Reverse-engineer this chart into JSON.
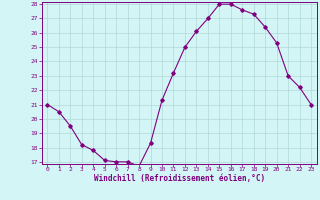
{
  "x": [
    0,
    1,
    2,
    3,
    4,
    5,
    6,
    7,
    8,
    9,
    10,
    11,
    12,
    13,
    14,
    15,
    16,
    17,
    18,
    19,
    20,
    21,
    22,
    23
  ],
  "y": [
    21.0,
    20.5,
    19.5,
    18.2,
    17.8,
    17.1,
    17.0,
    17.0,
    16.7,
    18.3,
    21.3,
    23.2,
    25.0,
    26.1,
    27.0,
    28.0,
    28.0,
    27.6,
    27.3,
    26.4,
    25.3,
    23.0,
    22.2,
    21.0
  ],
  "line_color": "#800080",
  "marker": "D",
  "marker_size": 1.8,
  "bg_color": "#d4f5f5",
  "grid_color": "#b0d8d8",
  "xlabel": "Windchill (Refroidissement éolien,°C)",
  "xlabel_color": "#800080",
  "tick_color": "#800080",
  "ylim": [
    17,
    28
  ],
  "xlim": [
    -0.5,
    23.5
  ],
  "yticks": [
    17,
    18,
    19,
    20,
    21,
    22,
    23,
    24,
    25,
    26,
    27,
    28
  ],
  "xticks": [
    0,
    1,
    2,
    3,
    4,
    5,
    6,
    7,
    8,
    9,
    10,
    11,
    12,
    13,
    14,
    15,
    16,
    17,
    18,
    19,
    20,
    21,
    22,
    23
  ]
}
